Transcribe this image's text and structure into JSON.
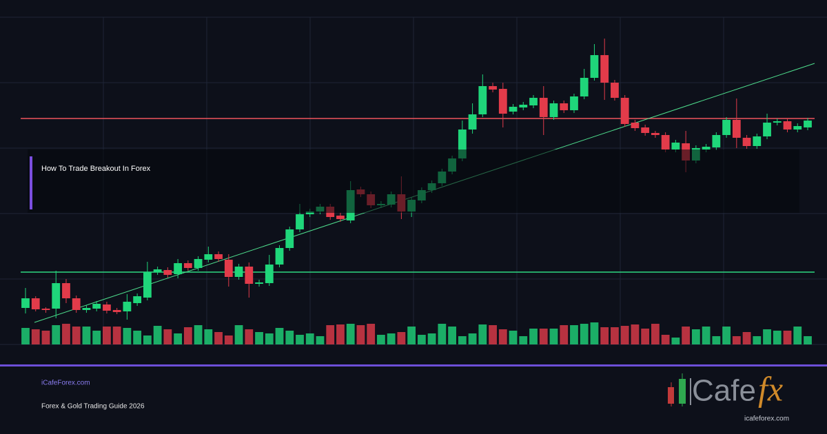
{
  "chart_data": {
    "type": "candlestick",
    "title": "How To Trade Breakout In Forex",
    "up_color": "#1fd67a",
    "down_color": "#e23b4a",
    "ylim": [
      0,
      475
    ],
    "open": [
      53,
      67,
      52,
      52,
      89,
      67,
      50,
      52,
      58,
      50,
      48,
      60,
      68,
      105,
      108,
      102,
      118,
      111,
      123,
      131,
      123,
      98,
      113,
      88,
      89,
      116,
      140,
      167,
      189,
      193,
      200,
      187,
      180,
      225,
      218,
      202,
      203,
      218,
      193,
      209,
      224,
      234,
      251,
      270,
      312,
      334,
      375,
      371,
      338,
      344,
      347,
      358,
      330,
      350,
      340,
      360,
      387,
      420,
      380,
      358,
      322,
      315,
      307,
      304,
      283,
      292,
      267,
      283,
      286,
      304,
      326,
      300,
      288,
      302,
      322,
      324,
      312,
      315
    ],
    "high": [
      82,
      70,
      54,
      107,
      95,
      71,
      57,
      63,
      62,
      53,
      73,
      74,
      120,
      113,
      112,
      124,
      122,
      128,
      142,
      135,
      131,
      117,
      119,
      94,
      130,
      144,
      171,
      204,
      197,
      204,
      204,
      191,
      237,
      229,
      222,
      208,
      222,
      244,
      214,
      228,
      238,
      255,
      274,
      325,
      350,
      392,
      380,
      380,
      349,
      352,
      362,
      375,
      354,
      354,
      364,
      400,
      436,
      444,
      384,
      362,
      326,
      319,
      310,
      308,
      297,
      310,
      289,
      291,
      308,
      330,
      357,
      304,
      306,
      335,
      328,
      328,
      321,
      329
    ],
    "low": [
      45,
      48,
      46,
      38,
      60,
      46,
      46,
      48,
      45,
      44,
      36,
      56,
      64,
      101,
      97,
      96,
      107,
      107,
      119,
      120,
      84,
      94,
      68,
      84,
      85,
      112,
      136,
      163,
      185,
      189,
      181,
      178,
      176,
      214,
      198,
      198,
      199,
      182,
      185,
      205,
      220,
      230,
      247,
      266,
      306,
      330,
      366,
      315,
      334,
      340,
      343,
      304,
      326,
      336,
      336,
      356,
      383,
      355,
      354,
      316,
      310,
      303,
      300,
      279,
      279,
      250,
      263,
      279,
      282,
      300,
      285,
      284,
      284,
      298,
      318,
      308,
      308,
      311
    ],
    "close": [
      67,
      51,
      50,
      89,
      67,
      50,
      53,
      59,
      49,
      47,
      62,
      70,
      105,
      109,
      101,
      118,
      111,
      124,
      131,
      124,
      98,
      113,
      88,
      90,
      116,
      140,
      167,
      189,
      193,
      200,
      185,
      182,
      224,
      218,
      202,
      204,
      218,
      193,
      210,
      224,
      234,
      251,
      270,
      312,
      334,
      375,
      370,
      335,
      345,
      348,
      358,
      330,
      350,
      340,
      360,
      387,
      420,
      380,
      358,
      320,
      314,
      307,
      304,
      283,
      293,
      267,
      285,
      287,
      304,
      326,
      300,
      288,
      302,
      322,
      324,
      312,
      317,
      325
    ],
    "volume": [
      24,
      22,
      20,
      28,
      30,
      26,
      26,
      20,
      26,
      26,
      24,
      20,
      13,
      27,
      22,
      16,
      25,
      28,
      22,
      18,
      13,
      28,
      22,
      18,
      16,
      24,
      20,
      14,
      16,
      12,
      28,
      29,
      30,
      28,
      30,
      14,
      16,
      18,
      26,
      14,
      16,
      30,
      26,
      12,
      16,
      29,
      28,
      22,
      20,
      12,
      23,
      23,
      23,
      28,
      28,
      30,
      32,
      25,
      25,
      27,
      29,
      23,
      30,
      14,
      10,
      26,
      22,
      26,
      12,
      26,
      12,
      18,
      12,
      22,
      20,
      20,
      26,
      12
    ],
    "resistance": 328,
    "support": 105,
    "trendline": [
      32,
      408
    ]
  },
  "footer": {
    "site": "iCafeForex.com",
    "tagline": "Forex & Gold Trading Guide 2026"
  },
  "logo": {
    "wordmark": "Cafe",
    "suffix": "fx",
    "url": "icafeforex.com"
  }
}
